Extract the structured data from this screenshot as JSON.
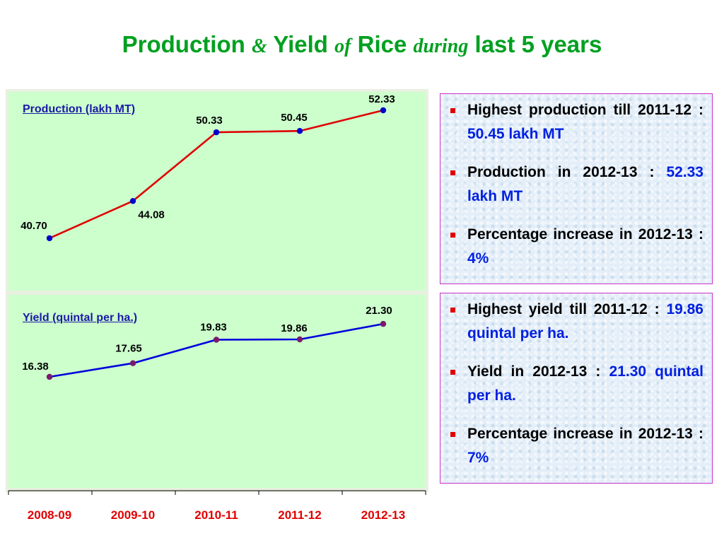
{
  "title": {
    "part1": "Production",
    "amp": "&",
    "part2": "Yield",
    "of": "of",
    "part3": "Rice",
    "during": "during",
    "part4": "last 5 years"
  },
  "colors": {
    "title": "#00a020",
    "panel_bg": "#ccffcc",
    "production_line": "#e00000",
    "production_marker": "#0000cc",
    "yield_line": "#0000dd",
    "yield_marker": "#7a1a6e",
    "category_label": "#e00000",
    "highlight": "#0020e0",
    "bullet": "#e00000"
  },
  "chart_data": [
    {
      "type": "line",
      "title": "Production (lakh MT)",
      "categories": [
        "2008-09",
        "2009-10",
        "2010-11",
        "2011-12",
        "2012-13"
      ],
      "values": [
        40.7,
        44.08,
        50.33,
        50.45,
        52.33
      ],
      "labels": [
        "40.70",
        "44.08",
        "50.33",
        "50.45",
        "52.33"
      ],
      "ylim": [
        36,
        54
      ],
      "grid": false
    },
    {
      "type": "line",
      "title": "Yield (quintal per ha.)",
      "categories": [
        "2008-09",
        "2009-10",
        "2010-11",
        "2011-12",
        "2012-13"
      ],
      "values": [
        16.38,
        17.65,
        19.83,
        19.86,
        21.3
      ],
      "labels": [
        "16.38",
        "17.65",
        "19.83",
        "19.86",
        "21.30"
      ],
      "ylim": [
        6,
        24
      ],
      "grid": false
    }
  ],
  "production_box": {
    "items": [
      {
        "text": "Highest production till 2011-12 : ",
        "value": "50.45 lakh MT"
      },
      {
        "text": "Production in 2012-13 : ",
        "value": "52.33 lakh MT"
      },
      {
        "text": "Percentage increase in 2012-13 : ",
        "value": "4%"
      }
    ]
  },
  "yield_box": {
    "items": [
      {
        "text": "Highest yield till 2011-12 : ",
        "value": "19.86 quintal per ha."
      },
      {
        "text": "Yield in 2012-13 : ",
        "value": "21.30 quintal per ha."
      },
      {
        "text": "Percentage increase in 2012-13 : ",
        "value": "7%"
      }
    ]
  }
}
